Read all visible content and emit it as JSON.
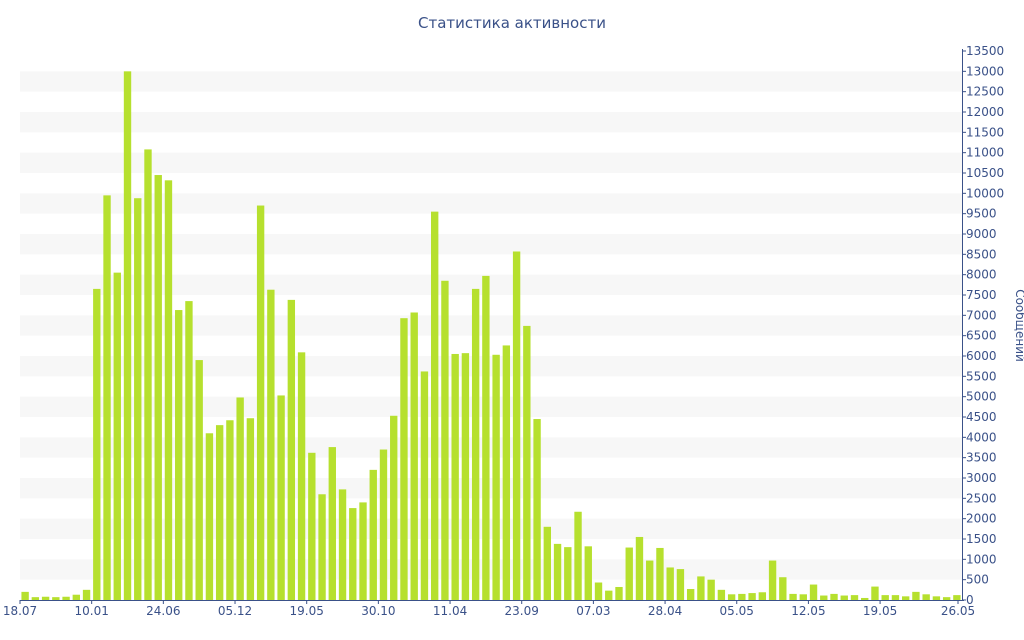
{
  "chart_data": {
    "type": "bar",
    "title": "Статистика активности",
    "ylabel": "Сообщений",
    "xlabel": "",
    "ylim": [
      0,
      13500
    ],
    "y_ticks": [
      0,
      500,
      1000,
      1500,
      2000,
      2500,
      3000,
      3500,
      4000,
      4500,
      5000,
      5500,
      6000,
      6500,
      7000,
      7500,
      8000,
      8500,
      9000,
      9500,
      10000,
      10500,
      11000,
      11500,
      12000,
      12500,
      13000,
      13500
    ],
    "x_tick_labels": [
      "18.07",
      "10.01",
      "24.06",
      "05.12",
      "19.05",
      "30.10",
      "11.04",
      "23.09",
      "07.03",
      "28.04",
      "05.05",
      "12.05",
      "19.05",
      "26.05"
    ],
    "x_tick_indices": [
      0,
      7,
      14,
      21,
      28,
      35,
      42,
      49,
      56,
      63,
      70,
      77,
      84,
      91
    ],
    "values": [
      200,
      70,
      80,
      70,
      80,
      130,
      250,
      7650,
      9950,
      8050,
      13000,
      9880,
      11080,
      10450,
      10320,
      7130,
      7350,
      5900,
      4100,
      4300,
      4420,
      4980,
      4470,
      9700,
      7630,
      5030,
      7380,
      6090,
      3620,
      2600,
      3760,
      2720,
      2260,
      2400,
      3200,
      3700,
      4530,
      6930,
      7070,
      5620,
      9550,
      7850,
      6050,
      6070,
      7650,
      7970,
      6030,
      6260,
      8570,
      6740,
      4450,
      1800,
      1380,
      1300,
      2170,
      1320,
      430,
      230,
      320,
      1290,
      1550,
      970,
      1280,
      800,
      760,
      270,
      580,
      500,
      250,
      140,
      150,
      170,
      190,
      970,
      560,
      150,
      140,
      380,
      110,
      150,
      110,
      120,
      50,
      330,
      120,
      120,
      90,
      200,
      140,
      90,
      70,
      120
    ],
    "bar_color": "#b6e02e",
    "band_color": "#f7f7f7",
    "grid": "alternating horizontal bands",
    "y_axis_side": "right"
  }
}
